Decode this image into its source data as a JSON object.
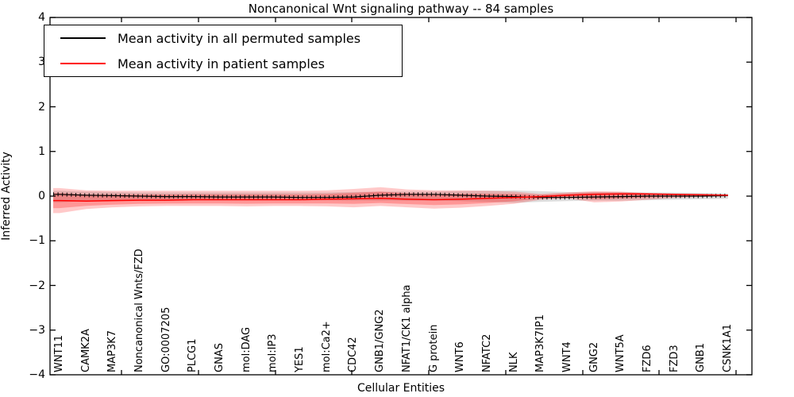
{
  "title": "Noncanonical Wnt signaling pathway -- 84 samples",
  "axes": {
    "ylabel": "Inferred Activity",
    "xlabel": "Cellular Entities",
    "yticks": [
      "4",
      "3",
      "2",
      "1",
      "0",
      "−1",
      "−2",
      "−3",
      "−4"
    ],
    "ytick_values": [
      4,
      3,
      2,
      1,
      0,
      -1,
      -2,
      -3,
      -4
    ]
  },
  "legend": {
    "items": [
      {
        "label": "Mean activity in all permuted samples",
        "color": "#000000"
      },
      {
        "label": "Mean activity in patient samples",
        "color": "#ff0000"
      }
    ]
  },
  "chart_data": {
    "type": "line",
    "title": "Noncanonical Wnt signaling pathway -- 84 samples",
    "xlabel": "Cellular Entities",
    "ylabel": "Inferred Activity",
    "ylim": [
      -4,
      4
    ],
    "grid": false,
    "legend_position": "upper left",
    "categories": [
      "WNT11",
      "CAMK2A",
      "MAP3K7",
      "Noncanonical Wnts/FZD",
      "GO:0007205",
      "PLCG1",
      "GNAS",
      "mol:DAG",
      "mol:IP3",
      "YES1",
      "mol:Ca2+",
      "CDC42",
      "GNB1/GNG2",
      "NFAT1/CK1 alpha",
      "G protein",
      "WNT6",
      "NFATC2",
      "NLK",
      "MAP3K7IP1",
      "WNT4",
      "GNG2",
      "WNT5A",
      "FZD6",
      "FZD3",
      "GNB1",
      "CSNK1A1"
    ],
    "series": [
      {
        "name": "Mean activity in all permuted samples",
        "color": "#000000",
        "values": [
          0.04,
          0.02,
          0.01,
          0.0,
          -0.01,
          -0.01,
          -0.02,
          -0.02,
          -0.02,
          -0.03,
          -0.03,
          -0.02,
          0.02,
          0.04,
          0.04,
          0.02,
          0.0,
          -0.01,
          -0.03,
          -0.03,
          -0.02,
          -0.01,
          0.0,
          0.0,
          0.0,
          0.01
        ],
        "band_upper": [
          0.12,
          0.1,
          0.09,
          0.08,
          0.08,
          0.08,
          0.08,
          0.08,
          0.08,
          0.08,
          0.08,
          0.09,
          0.1,
          0.1,
          0.1,
          0.11,
          0.12,
          0.13,
          0.11,
          0.09,
          0.09,
          0.09,
          0.08,
          0.08,
          0.07,
          0.06
        ],
        "band_lower": [
          -0.14,
          -0.11,
          -0.1,
          -0.09,
          -0.09,
          -0.09,
          -0.09,
          -0.09,
          -0.09,
          -0.09,
          -0.09,
          -0.1,
          -0.1,
          -0.1,
          -0.1,
          -0.11,
          -0.13,
          -0.15,
          -0.13,
          -0.11,
          -0.1,
          -0.1,
          -0.09,
          -0.08,
          -0.07,
          -0.06
        ],
        "band_color": "#000000",
        "band_opacity": 0.13
      },
      {
        "name": "Mean activity in patient samples",
        "color": "#ff0000",
        "values": [
          -0.1,
          -0.11,
          -0.1,
          -0.09,
          -0.09,
          -0.08,
          -0.08,
          -0.08,
          -0.08,
          -0.08,
          -0.07,
          -0.06,
          -0.05,
          -0.07,
          -0.08,
          -0.07,
          -0.05,
          -0.03,
          -0.01,
          0.02,
          0.04,
          0.05,
          0.05,
          0.04,
          0.03,
          0.02
        ],
        "band_upper": [
          0.18,
          0.13,
          0.12,
          0.12,
          0.12,
          0.12,
          0.12,
          0.12,
          0.12,
          0.12,
          0.13,
          0.16,
          0.2,
          0.15,
          0.13,
          0.13,
          0.12,
          0.1,
          0.05,
          0.08,
          0.11,
          0.1,
          0.07,
          0.04,
          0.03,
          0.02
        ],
        "band_lower": [
          -0.38,
          -0.29,
          -0.25,
          -0.23,
          -0.22,
          -0.22,
          -0.22,
          -0.23,
          -0.22,
          -0.22,
          -0.23,
          -0.25,
          -0.22,
          -0.25,
          -0.28,
          -0.26,
          -0.22,
          -0.17,
          -0.08,
          -0.05,
          -0.14,
          -0.12,
          -0.08,
          -0.04,
          -0.02,
          0.0
        ],
        "band_color": "#ff0000",
        "band_opacity": 0.21,
        "inner_band_opacity": 0.25
      }
    ]
  }
}
